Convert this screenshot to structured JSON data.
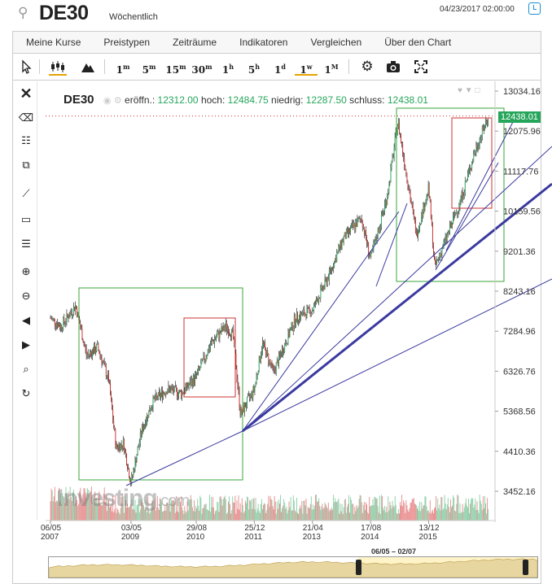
{
  "header": {
    "symbol": "DE30",
    "period": "Wöchentlich",
    "datetime": "04/23/2017 02:00:00",
    "icons": {
      "search": "search-icon",
      "clock": "clock-icon"
    }
  },
  "menu": {
    "items": [
      "Meine Kurse",
      "Preistypen",
      "Zeiträume",
      "Indikatoren",
      "Vergleichen",
      "Über den Chart"
    ]
  },
  "toolbar": {
    "chart_types": [
      "candlestick-icon",
      "mountain-icon"
    ],
    "intervals": [
      {
        "num": "1",
        "unit": "m"
      },
      {
        "num": "5",
        "unit": "m"
      },
      {
        "num": "15",
        "unit": "m"
      },
      {
        "num": "30",
        "unit": "m"
      },
      {
        "num": "1",
        "unit": "h"
      },
      {
        "num": "5",
        "unit": "h"
      },
      {
        "num": "1",
        "unit": "d"
      },
      {
        "num": "1",
        "unit": "w"
      },
      {
        "num": "1",
        "unit": "M"
      }
    ],
    "active_interval": "1w",
    "action_icons": [
      "gear-icon",
      "camera-icon",
      "fullscreen-icon"
    ]
  },
  "legend": {
    "symbol": "DE30",
    "open_label": "eröffn.:",
    "open": "12312.00",
    "high_label": "hoch:",
    "high": "12484.75",
    "low_label": "niedrig:",
    "low": "12287.50",
    "close_label": "schluss:",
    "close": "12438.01"
  },
  "price_tag": "12438.01",
  "watermark": {
    "brand": "Investing",
    "suffix": ".com"
  },
  "navigator": {
    "range_label": "06/05 – 02/07"
  },
  "colors": {
    "up": "#26a65b",
    "down": "#d42a2a",
    "box": "#3aa63a",
    "box_red": "#cc3333",
    "trendline": "#3a3aa0",
    "accent": "#e6a400"
  },
  "chart_data": {
    "type": "candlestick",
    "y_ticks": [
      13034.16,
      12075.96,
      11117.76,
      10159.56,
      9201.36,
      8243.16,
      7284.96,
      6326.76,
      5368.56,
      4410.36,
      3452.16
    ],
    "x_ticks": [
      "06/05\n2007",
      "03/05\n2009",
      "29/08\n2010",
      "25/12\n2011",
      "21/04\n2013",
      "17/08\n2014",
      "13/12\n2015"
    ],
    "ylim": [
      3000,
      13300
    ],
    "close_path": [
      [
        "2007-05-06",
        7600
      ],
      [
        "2007-08-01",
        7400
      ],
      [
        "2007-12-01",
        7900
      ],
      [
        "2008-03-01",
        6700
      ],
      [
        "2008-06-01",
        6900
      ],
      [
        "2008-09-01",
        6100
      ],
      [
        "2008-11-01",
        4500
      ],
      [
        "2009-01-01",
        4600
      ],
      [
        "2009-03-05",
        3650
      ],
      [
        "2009-06-01",
        4900
      ],
      [
        "2009-09-01",
        5600
      ],
      [
        "2010-01-01",
        5900
      ],
      [
        "2010-05-01",
        5800
      ],
      [
        "2010-08-29",
        6200
      ],
      [
        "2011-01-01",
        7000
      ],
      [
        "2011-05-01",
        7400
      ],
      [
        "2011-07-01",
        7200
      ],
      [
        "2011-09-01",
        5300
      ],
      [
        "2011-12-25",
        5900
      ],
      [
        "2012-03-01",
        7000
      ],
      [
        "2012-06-01",
        6300
      ],
      [
        "2012-12-01",
        7600
      ],
      [
        "2013-04-21",
        7800
      ],
      [
        "2013-09-01",
        8600
      ],
      [
        "2014-01-01",
        9500
      ],
      [
        "2014-06-01",
        10000
      ],
      [
        "2014-08-17",
        9000
      ],
      [
        "2015-01-01",
        10500
      ],
      [
        "2015-04-01",
        12300
      ],
      [
        "2015-09-01",
        9600
      ],
      [
        "2015-12-13",
        10700
      ],
      [
        "2016-02-01",
        8800
      ],
      [
        "2016-06-01",
        9700
      ],
      [
        "2016-09-01",
        10400
      ],
      [
        "2017-01-01",
        11600
      ],
      [
        "2017-04-23",
        12438
      ]
    ],
    "volume": "bars along bottom (unlabeled)",
    "last_price": 12438.01,
    "grid": false,
    "annotations": "green and red rectangles, blue fan trendlines"
  }
}
